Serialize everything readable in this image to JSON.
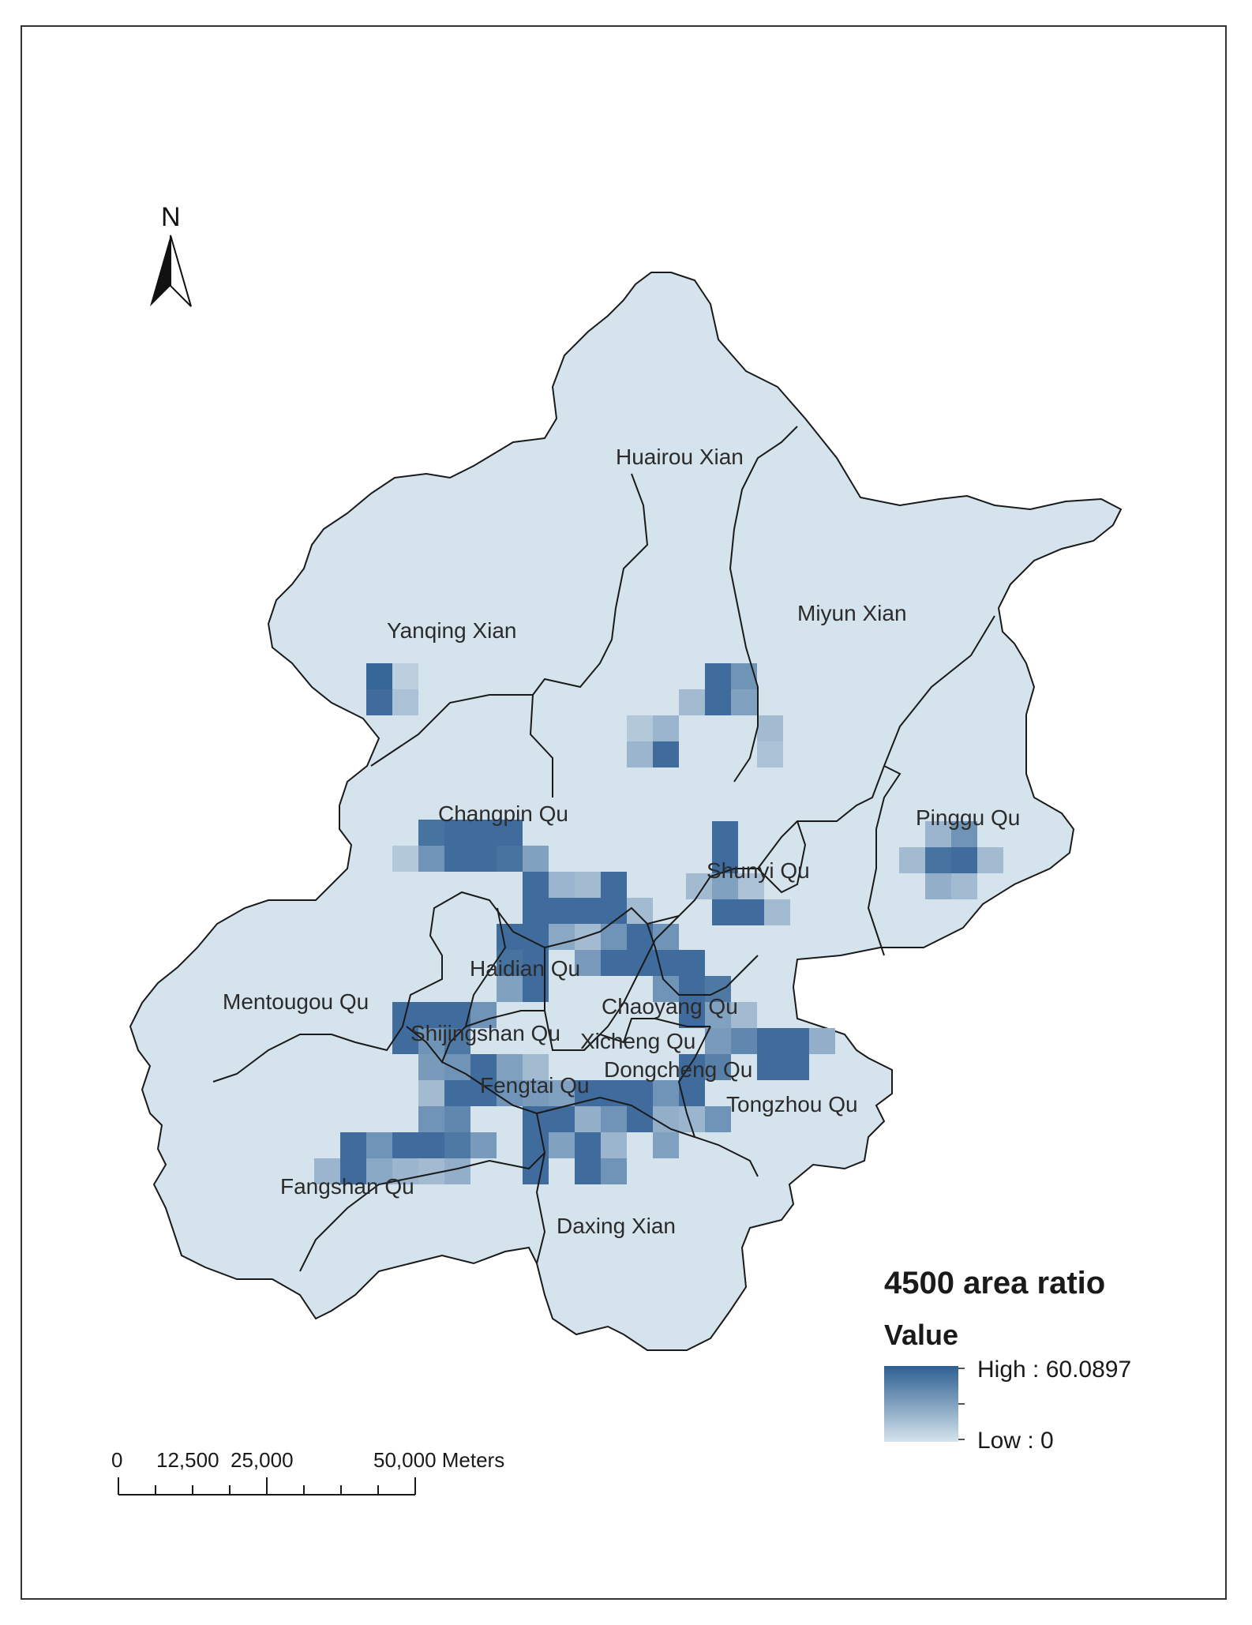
{
  "map": {
    "legend": {
      "title": "4500 area ratio",
      "subtitle": "Value",
      "high_label": "High : 60.0897",
      "low_label": "Low : 0",
      "high_value": 60.0897,
      "low_value": 0,
      "color_high": "#2e5f93",
      "color_low": "#d4e3ec"
    },
    "north_arrow": {
      "label": "N"
    },
    "scale_bar": {
      "ticks": [
        "0",
        "12,500",
        "25,000",
        "50,000 Meters"
      ]
    },
    "districts": [
      "Huairou Xian",
      "Miyun Xian",
      "Yanqing Xian",
      "Changpin Qu",
      "Pinggu Qu",
      "Shunyi Qu",
      "Haidian Qu",
      "Mentougou Qu",
      "Chaoyang Qu",
      "Shijingshan Qu",
      "Xicheng Qu",
      "Dongcheng Qu",
      "Fengtai Qu",
      "Tongzhou Qu",
      "Fangshan Qu",
      "Daxing Xian"
    ],
    "colors": {
      "base_fill": "#d4e3ec",
      "boundary": "#1a1a1a",
      "frame": "#333333"
    }
  }
}
